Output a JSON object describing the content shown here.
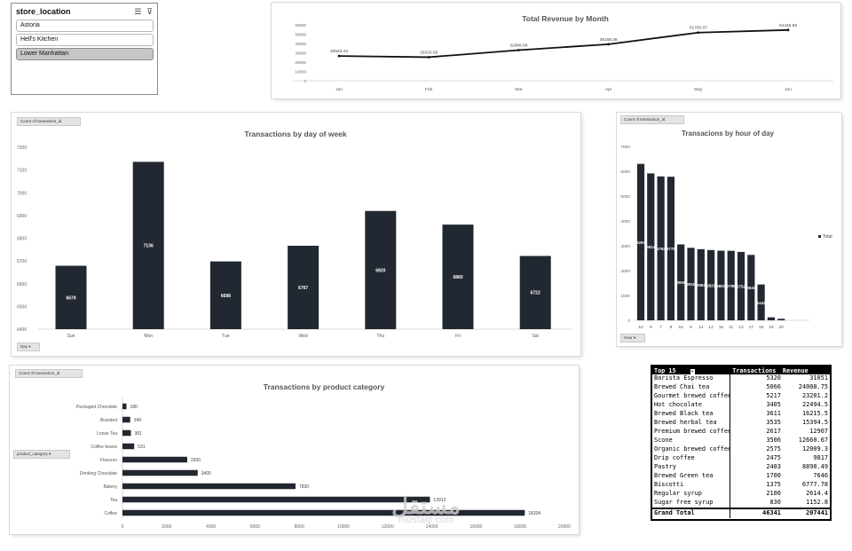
{
  "slicer": {
    "title": "store_location",
    "items": [
      {
        "label": "Astoria",
        "selected": false
      },
      {
        "label": "Hell's Kitchen",
        "selected": false
      },
      {
        "label": "Lower Manhattan",
        "selected": true
      }
    ]
  },
  "field_buttons": {
    "count": "Count of transaction_id",
    "day": "Day",
    "hour": "Hour",
    "category": "product_category"
  },
  "chart_data": [
    {
      "id": "revenue",
      "type": "line",
      "title": "Total Revenue by Month",
      "categories": [
        "Jan",
        "Feb",
        "Mar",
        "Apr",
        "May",
        "Jun"
      ],
      "values": [
        26543.43,
        25320.05,
        32888.68,
        39159.38,
        51700.07,
        54445.69
      ],
      "labels": [
        "26543.43",
        "25320.05",
        "32888.68",
        "39159.38",
        "51700.07",
        "54445.69"
      ],
      "yticks": [
        0,
        10000,
        20000,
        30000,
        40000,
        50000,
        60000
      ],
      "ylim": [
        0,
        60000
      ],
      "grid": false,
      "color": "#111111"
    },
    {
      "id": "dow",
      "type": "bar",
      "title": "Transactions by day of week",
      "categories": [
        "Sun",
        "Mon",
        "Tue",
        "Wed",
        "Thu",
        "Fri",
        "Sat"
      ],
      "values": [
        6679,
        7136,
        6698,
        6767,
        6920,
        6860,
        6722
      ],
      "yticks": [
        6400,
        6500,
        6600,
        6700,
        6800,
        6900,
        7000,
        7100,
        7200
      ],
      "ylim": [
        6400,
        7200
      ],
      "grid": false,
      "color": "#222831"
    },
    {
      "id": "hour",
      "type": "bar",
      "title": "Transacions by hour of day",
      "categories": [
        "10",
        "9",
        "7",
        "8",
        "15",
        "6",
        "14",
        "12",
        "16",
        "11",
        "13",
        "17",
        "18",
        "19",
        "20"
      ],
      "values": [
        6297,
        5914,
        5792,
        5779,
        3055,
        2918,
        2863,
        2829,
        2803,
        2798,
        2752,
        2632,
        1442,
        120,
        60
      ],
      "labels": [
        "6297",
        "5914",
        "5792",
        "5779",
        "3055",
        "2918",
        "2863",
        "2829",
        "2803",
        "2798",
        "2752",
        "2632",
        "1442",
        "",
        ""
      ],
      "yticks": [
        0,
        1000,
        2000,
        3000,
        4000,
        5000,
        6000,
        7000
      ],
      "ylim": [
        0,
        7000
      ],
      "legend": "Total",
      "legend_position": "right",
      "grid": false,
      "color": "#222831"
    },
    {
      "id": "category",
      "type": "bar",
      "orientation": "horizontal",
      "title": "Transactions by product category",
      "categories": [
        "Packaged Chocolate",
        "Branded",
        "Loose Tea",
        "Coffee beans",
        "Flavours",
        "Drinking Chocolate",
        "Bakery",
        "Tea",
        "Coffee"
      ],
      "values": [
        180,
        349,
        381,
        531,
        2930,
        3405,
        7830,
        13912,
        18204
      ],
      "xticks": [
        0,
        2000,
        4000,
        6000,
        8000,
        10000,
        12000,
        14000,
        16000,
        18000,
        20000
      ],
      "xlim": [
        0,
        20000
      ],
      "grid": false,
      "color": "#222831"
    }
  ],
  "top15": {
    "headers": [
      "Top 15",
      "Transactions",
      "Revenue"
    ],
    "rows": [
      [
        "Barista Espresso",
        "5320",
        "31051"
      ],
      [
        "Brewed Chai tea",
        "5066",
        "24008.75"
      ],
      [
        "Gourmet brewed coffee",
        "5217",
        "23201.2"
      ],
      [
        "Hot chocolate",
        "3405",
        "22494.5"
      ],
      [
        "Brewed Black tea",
        "3611",
        "16215.5"
      ],
      [
        "Brewed herbal tea",
        "3535",
        "15394.5"
      ],
      [
        "Premium brewed coffee",
        "2617",
        "12907"
      ],
      [
        "Scone",
        "3506",
        "12660.67"
      ],
      [
        "Organic brewed coffee",
        "2575",
        "12009.3"
      ],
      [
        "Drip coffee",
        "2475",
        "9817"
      ],
      [
        "Pastry",
        "2403",
        "8890.49"
      ],
      [
        "Brewed Green tea",
        "1700",
        "7646"
      ],
      [
        "Biscotti",
        "1375",
        "6777.78"
      ],
      [
        "Regular syrup",
        "2100",
        "2614.4"
      ],
      [
        "Sugar free syrup",
        "830",
        "1152.8"
      ]
    ],
    "total": [
      "Grand Total",
      "46341",
      "207441"
    ]
  },
  "watermark": {
    "big": "مستقل",
    "small": "mostaql.com"
  }
}
